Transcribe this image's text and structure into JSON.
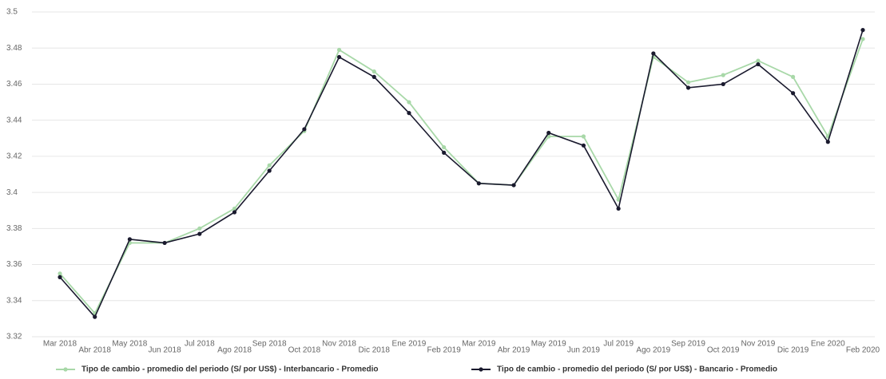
{
  "chart_data": {
    "type": "line",
    "categories": [
      "Mar 2018",
      "Abr 2018",
      "May 2018",
      "Jun 2018",
      "Jul 2018",
      "Ago 2018",
      "Sep 2018",
      "Oct 2018",
      "Nov 2018",
      "Dic 2018",
      "Ene 2019",
      "Feb 2019",
      "Mar 2019",
      "Abr 2019",
      "May 2019",
      "Jun 2019",
      "Jul 2019",
      "Ago 2019",
      "Sep 2019",
      "Oct 2019",
      "Nov 2019",
      "Dic 2019",
      "Ene 2020",
      "Feb 2020"
    ],
    "series": [
      {
        "name": "Tipo de cambio - promedio del periodo (S/ por US$) - Interbancario - Promedio",
        "color": "#a8d8a8",
        "values": [
          3.355,
          3.333,
          3.372,
          3.372,
          3.38,
          3.391,
          3.415,
          3.434,
          3.479,
          3.467,
          3.45,
          3.425,
          3.405,
          3.404,
          3.431,
          3.431,
          3.396,
          3.475,
          3.461,
          3.465,
          3.473,
          3.464,
          3.431,
          3.485
        ]
      },
      {
        "name": "Tipo de cambio - promedio del periodo (S/ por US$) - Bancario - Promedio",
        "color": "#1a1a2e",
        "values": [
          3.353,
          3.331,
          3.374,
          3.372,
          3.377,
          3.389,
          3.412,
          3.435,
          3.475,
          3.464,
          3.444,
          3.422,
          3.405,
          3.404,
          3.433,
          3.426,
          3.391,
          3.477,
          3.458,
          3.46,
          3.471,
          3.455,
          3.428,
          3.49
        ]
      }
    ],
    "ylim": [
      3.32,
      3.5
    ],
    "yticks": [
      3.32,
      3.34,
      3.36,
      3.38,
      3.4,
      3.42,
      3.44,
      3.46,
      3.48,
      3.5
    ],
    "grid": true
  }
}
